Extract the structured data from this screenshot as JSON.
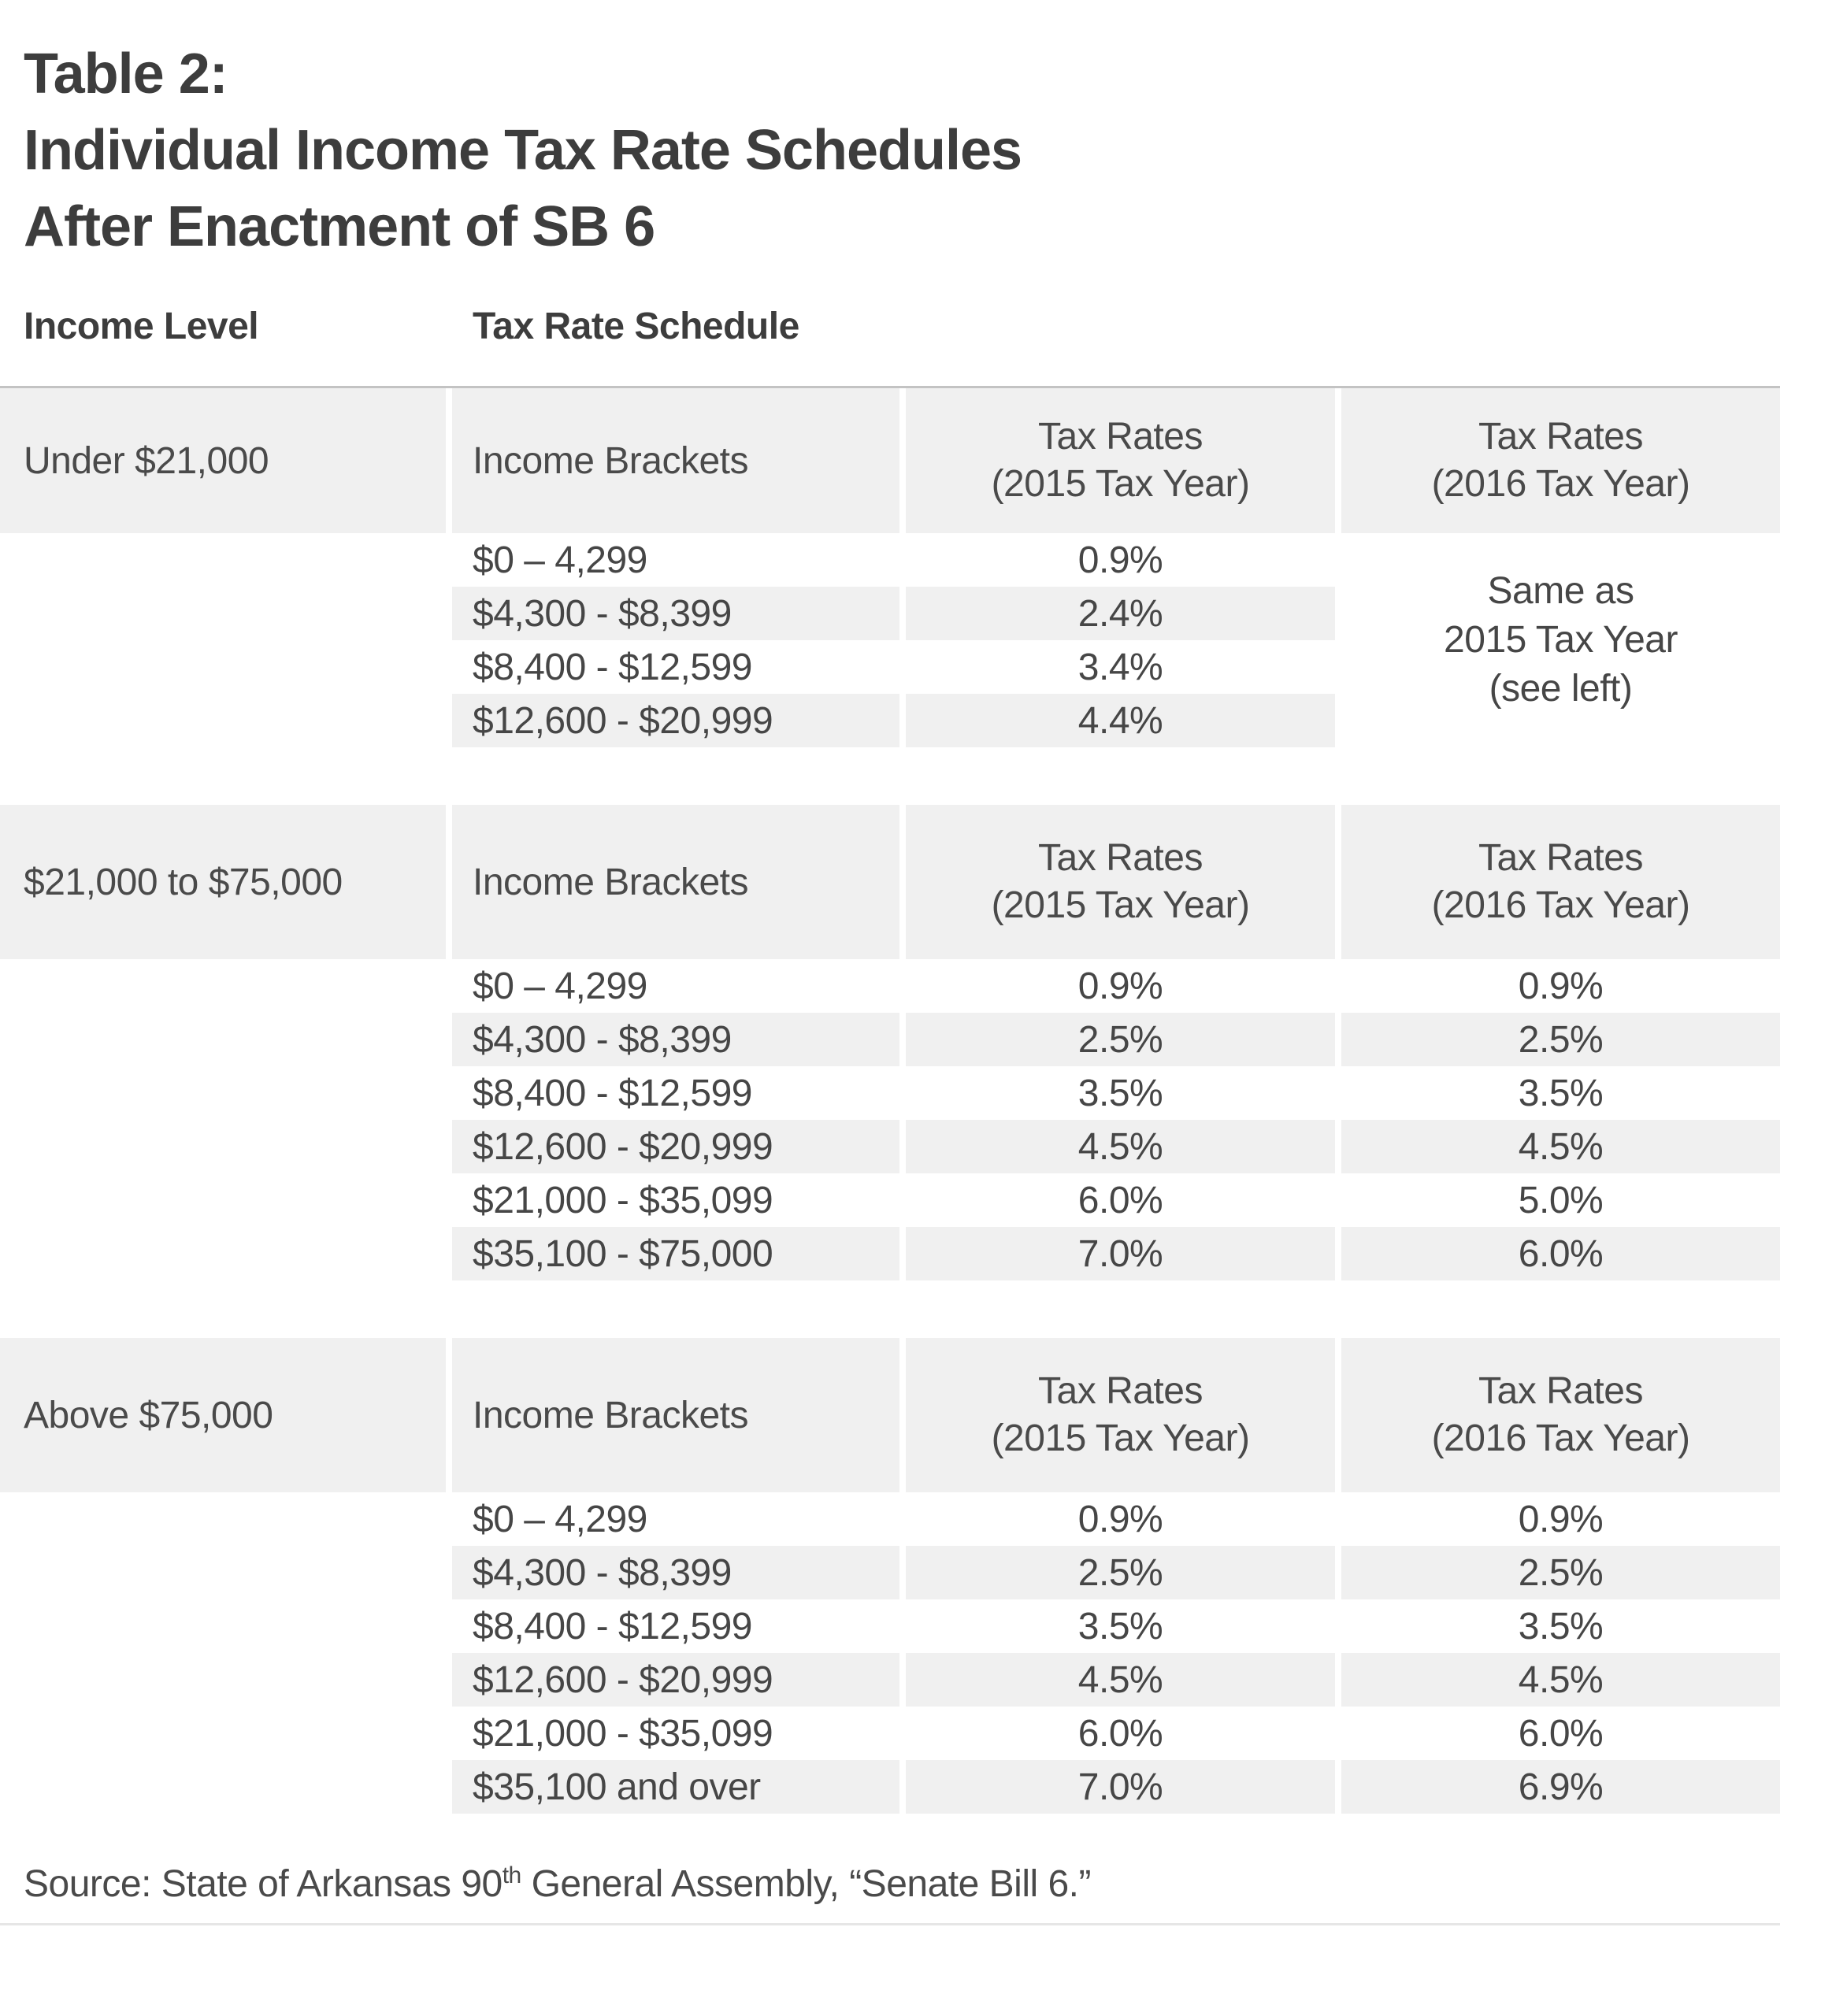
{
  "title": {
    "line1": "Table 2:",
    "line2": "Individual Income Tax Rate Schedules",
    "line3": "After Enactment of SB 6"
  },
  "column_headers": {
    "income_level": "Income Level",
    "tax_rate_schedule": "Tax Rate Schedule"
  },
  "sections": [
    {
      "level": "Under $21,000",
      "brackets_label": "Income Brackets",
      "rates_2015_header": {
        "line1": "Tax Rates",
        "line2": "(2015 Tax Year)"
      },
      "rates_2016_header": {
        "line1": "Tax Rates",
        "line2": "(2016 Tax Year)"
      },
      "same_as_2016": {
        "line1": "Same as",
        "line2": "2015 Tax Year",
        "line3": "(see left)"
      },
      "rows": [
        {
          "bracket": "$0 – 4,299",
          "rate_2015": "0.9%"
        },
        {
          "bracket": "$4,300 - $8,399",
          "rate_2015": "2.4%"
        },
        {
          "bracket": "$8,400 - $12,599",
          "rate_2015": "3.4%"
        },
        {
          "bracket": "$12,600 - $20,999",
          "rate_2015": "4.4%"
        }
      ]
    },
    {
      "level": "$21,000 to $75,000",
      "brackets_label": "Income Brackets",
      "rates_2015_header": {
        "line1": "Tax Rates",
        "line2": "(2015 Tax Year)"
      },
      "rates_2016_header": {
        "line1": "Tax Rates",
        "line2": "(2016 Tax Year)"
      },
      "rows": [
        {
          "bracket": "$0 – 4,299",
          "rate_2015": "0.9%",
          "rate_2016": "0.9%"
        },
        {
          "bracket": "$4,300 - $8,399",
          "rate_2015": "2.5%",
          "rate_2016": "2.5%"
        },
        {
          "bracket": "$8,400 - $12,599",
          "rate_2015": "3.5%",
          "rate_2016": "3.5%"
        },
        {
          "bracket": "$12,600 - $20,999",
          "rate_2015": "4.5%",
          "rate_2016": "4.5%"
        },
        {
          "bracket": "$21,000 - $35,099",
          "rate_2015": "6.0%",
          "rate_2016": "5.0%"
        },
        {
          "bracket": "$35,100 - $75,000",
          "rate_2015": "7.0%",
          "rate_2016": "6.0%"
        }
      ]
    },
    {
      "level": "Above $75,000",
      "brackets_label": "Income Brackets",
      "rates_2015_header": {
        "line1": "Tax Rates",
        "line2": "(2015 Tax Year)"
      },
      "rates_2016_header": {
        "line1": "Tax Rates",
        "line2": "(2016 Tax Year)"
      },
      "rows": [
        {
          "bracket": "$0 – 4,299",
          "rate_2015": "0.9%",
          "rate_2016": "0.9%"
        },
        {
          "bracket": "$4,300 - $8,399",
          "rate_2015": "2.5%",
          "rate_2016": "2.5%"
        },
        {
          "bracket": "$8,400 - $12,599",
          "rate_2015": "3.5%",
          "rate_2016": "3.5%"
        },
        {
          "bracket": "$12,600 - $20,999",
          "rate_2015": "4.5%",
          "rate_2016": "4.5%"
        },
        {
          "bracket": "$21,000 - $35,099",
          "rate_2015": "6.0%",
          "rate_2016": "6.0%"
        },
        {
          "bracket": "$35,100 and over",
          "rate_2015": "7.0%",
          "rate_2016": "6.9%"
        }
      ]
    }
  ],
  "source": {
    "prefix": "Source: State of Arkansas 90",
    "superscript": "th",
    "suffix": " General Assembly, “Senate Bill 6.”"
  },
  "colors": {
    "band_gray": "#f0f0f0",
    "table_top_border": "#c3c3c3",
    "text_dark": "#3d3d3d",
    "text_body": "#464646",
    "bottom_rule": "#e6e6e6"
  }
}
